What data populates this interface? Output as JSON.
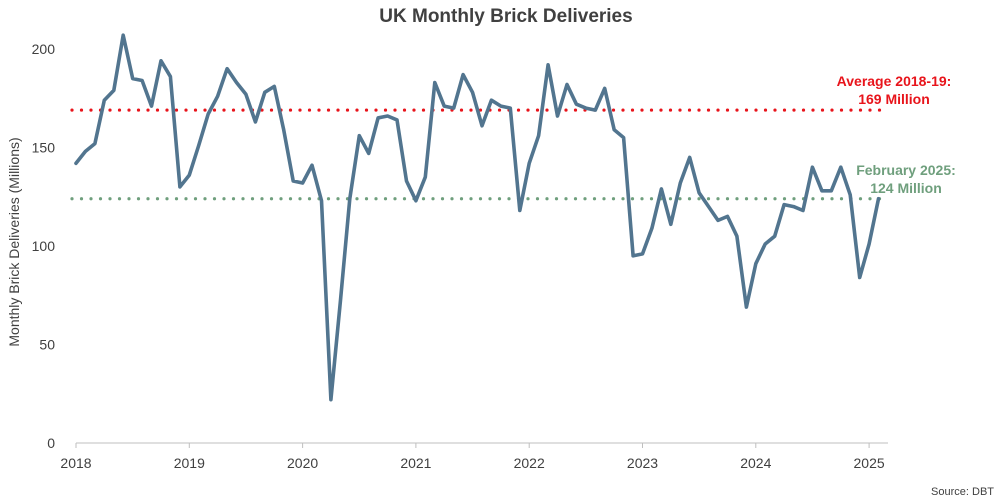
{
  "chart_data": {
    "type": "line",
    "title": "UK Monthly Brick Deliveries",
    "ylabel": "Monthly Brick Deliveries (Millions)",
    "xlabel": "",
    "ylim": [
      0,
      200
    ],
    "yticks": [
      0,
      50,
      100,
      150,
      200
    ],
    "xticks": [
      "2018",
      "2019",
      "2020",
      "2021",
      "2022",
      "2023",
      "2024",
      "2025"
    ],
    "grid": false,
    "series": [
      {
        "color": "#52758f",
        "x": [
          "2018-01",
          "2018-02",
          "2018-03",
          "2018-04",
          "2018-05",
          "2018-06",
          "2018-07",
          "2018-08",
          "2018-09",
          "2018-10",
          "2018-11",
          "2018-12",
          "2019-01",
          "2019-02",
          "2019-03",
          "2019-04",
          "2019-05",
          "2019-06",
          "2019-07",
          "2019-08",
          "2019-09",
          "2019-10",
          "2019-11",
          "2019-12",
          "2020-01",
          "2020-02",
          "2020-03",
          "2020-04",
          "2020-05",
          "2020-06",
          "2020-07",
          "2020-08",
          "2020-09",
          "2020-10",
          "2020-11",
          "2020-12",
          "2021-01",
          "2021-02",
          "2021-03",
          "2021-04",
          "2021-05",
          "2021-06",
          "2021-07",
          "2021-08",
          "2021-09",
          "2021-10",
          "2021-11",
          "2021-12",
          "2022-01",
          "2022-02",
          "2022-03",
          "2022-04",
          "2022-05",
          "2022-06",
          "2022-07",
          "2022-08",
          "2022-09",
          "2022-10",
          "2022-11",
          "2022-12",
          "2023-01",
          "2023-02",
          "2023-03",
          "2023-04",
          "2023-05",
          "2023-06",
          "2023-07",
          "2023-08",
          "2023-09",
          "2023-10",
          "2023-11",
          "2023-12",
          "2024-01",
          "2024-02",
          "2024-03",
          "2024-04",
          "2024-05",
          "2024-06",
          "2024-07",
          "2024-08",
          "2024-09",
          "2024-10",
          "2024-11",
          "2024-12",
          "2025-01",
          "2025-02"
        ],
        "values": [
          142,
          148,
          152,
          174,
          179,
          207,
          185,
          184,
          171,
          194,
          186,
          130,
          136,
          151,
          167,
          176,
          190,
          183,
          177,
          163,
          178,
          181,
          159,
          133,
          132,
          141,
          123,
          22,
          72,
          124,
          156,
          147,
          165,
          166,
          164,
          133,
          123,
          135,
          183,
          171,
          170,
          187,
          178,
          161,
          174,
          171,
          170,
          118,
          142,
          156,
          192,
          166,
          182,
          172,
          170,
          169,
          180,
          159,
          155,
          95,
          96,
          109,
          129,
          111,
          132,
          145,
          127,
          120,
          113,
          115,
          105,
          69,
          91,
          101,
          105,
          121,
          120,
          118,
          140,
          128,
          128,
          140,
          126,
          84,
          101,
          124
        ]
      }
    ],
    "reference_lines": [
      {
        "value": 169,
        "color": "#e8141b",
        "label_line1": "Average 2018-19:",
        "label_line2": "169 Million"
      },
      {
        "value": 124,
        "color": "#6f9f7d",
        "label_line1": "February 2025:",
        "label_line2": "124 Million"
      }
    ],
    "source": "Source: DBT"
  }
}
